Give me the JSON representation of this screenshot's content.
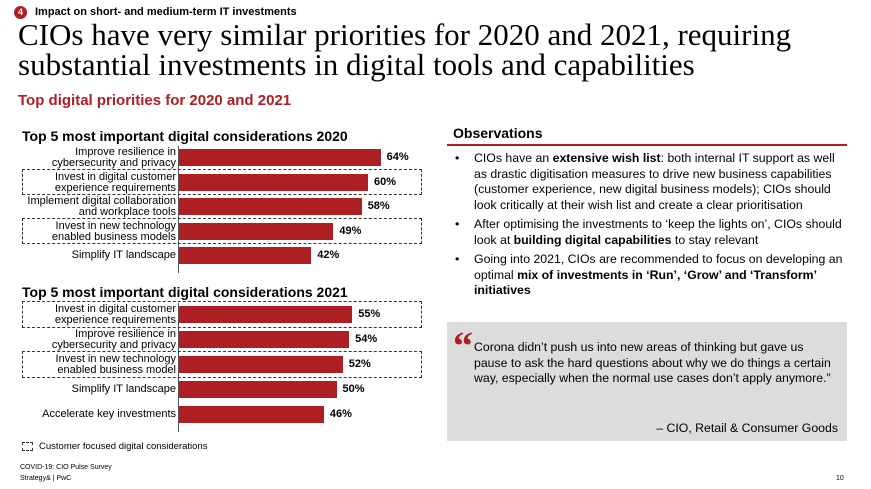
{
  "header": {
    "section_number": "4",
    "section_label": "Impact on short- and medium-term IT investments",
    "title": "CIOs have very similar priorities for 2020 and 2021, requiring substantial investments in digital tools and capabilities",
    "subtitle": "Top digital priorities for 2020 and 2021"
  },
  "chart_data": [
    {
      "type": "bar",
      "orientation": "horizontal",
      "title": "Top 5 most important digital considerations 2020",
      "categories": [
        "Improve resilience in cybersecurity and privacy",
        "Invest in digital customer experience requirements",
        "Implement digital collaboration and workplace tools",
        "Invest in new technology enabled business models",
        "Simplify IT landscape"
      ],
      "label_lines": [
        [
          "Improve resilience in",
          "cybersecurity and privacy"
        ],
        [
          "Invest in digital customer",
          "experience requirements"
        ],
        [
          "Implement digital collaboration",
          "and workplace tools"
        ],
        [
          "Invest in new technology",
          "enabled business models"
        ],
        [
          "Simplify IT landscape"
        ]
      ],
      "values": [
        64,
        60,
        58,
        49,
        42
      ],
      "value_labels": [
        "64%",
        "60%",
        "58%",
        "49%",
        "42%"
      ],
      "customer_focused": [
        false,
        true,
        false,
        true,
        false
      ],
      "unit": "%",
      "xlim": [
        0,
        100
      ],
      "grid": false
    },
    {
      "type": "bar",
      "orientation": "horizontal",
      "title": "Top 5 most important digital considerations 2021",
      "categories": [
        "Invest in digital customer experience requirements",
        "Improve resilience in cybersecurity and privacy",
        "Invest in new technology enabled business model",
        "Simplify IT landscape",
        "Accelerate key investments"
      ],
      "label_lines": [
        [
          "Invest in digital customer",
          "experience requirements"
        ],
        [
          "Improve resilience in",
          "cybersecurity and privacy"
        ],
        [
          "Invest in new technology",
          "enabled business model"
        ],
        [
          "Simplify IT landscape"
        ],
        [
          "Accelerate key investments"
        ]
      ],
      "values": [
        55,
        54,
        52,
        50,
        46
      ],
      "value_labels": [
        "55%",
        "54%",
        "52%",
        "50%",
        "46%"
      ],
      "customer_focused": [
        true,
        false,
        true,
        false,
        false
      ],
      "unit": "%",
      "xlim": [
        0,
        100
      ],
      "grid": false
    }
  ],
  "legend": {
    "label": "Customer focused digital considerations",
    "icon": "dashed-box-icon"
  },
  "footer": {
    "source": "COVID-19: CIO Pulse Survey",
    "brand": "Strategy& | PwC",
    "page": "10"
  },
  "observations": {
    "title": "Observations",
    "items": [
      [
        {
          "t": "CIOs have an ",
          "b": false
        },
        {
          "t": "extensive wish list",
          "b": true
        },
        {
          "t": ": both internal IT support as well as drastic digitisation measures to drive new business capabilities (customer experience, new digital business models); CIOs should look critically at their wish list and create a clear prioritisation",
          "b": false
        }
      ],
      [
        {
          "t": "After optimising the investments to ‘keep the lights on’, CIOs should look at ",
          "b": false
        },
        {
          "t": "building digital capabilities",
          "b": true
        },
        {
          "t": " to stay relevant",
          "b": false
        }
      ],
      [
        {
          "t": "Going into 2021, CIOs are recommended to focus on developing an optimal ",
          "b": false
        },
        {
          "t": "mix of investments in ‘Run’, ‘Grow’ and ‘Transform’ initiatives",
          "b": true
        }
      ]
    ]
  },
  "quote": {
    "mark": "“",
    "text": "Corona didn’t push us into new areas of thinking but gave us pause to ask the hard questions about why we do things a certain way, especially when the normal use cases don’t apply anymore.”",
    "author": "– CIO, Retail & Consumer Goods"
  },
  "colors": {
    "accent": "#ad1f23",
    "quote_bg": "#dcdcdc"
  }
}
